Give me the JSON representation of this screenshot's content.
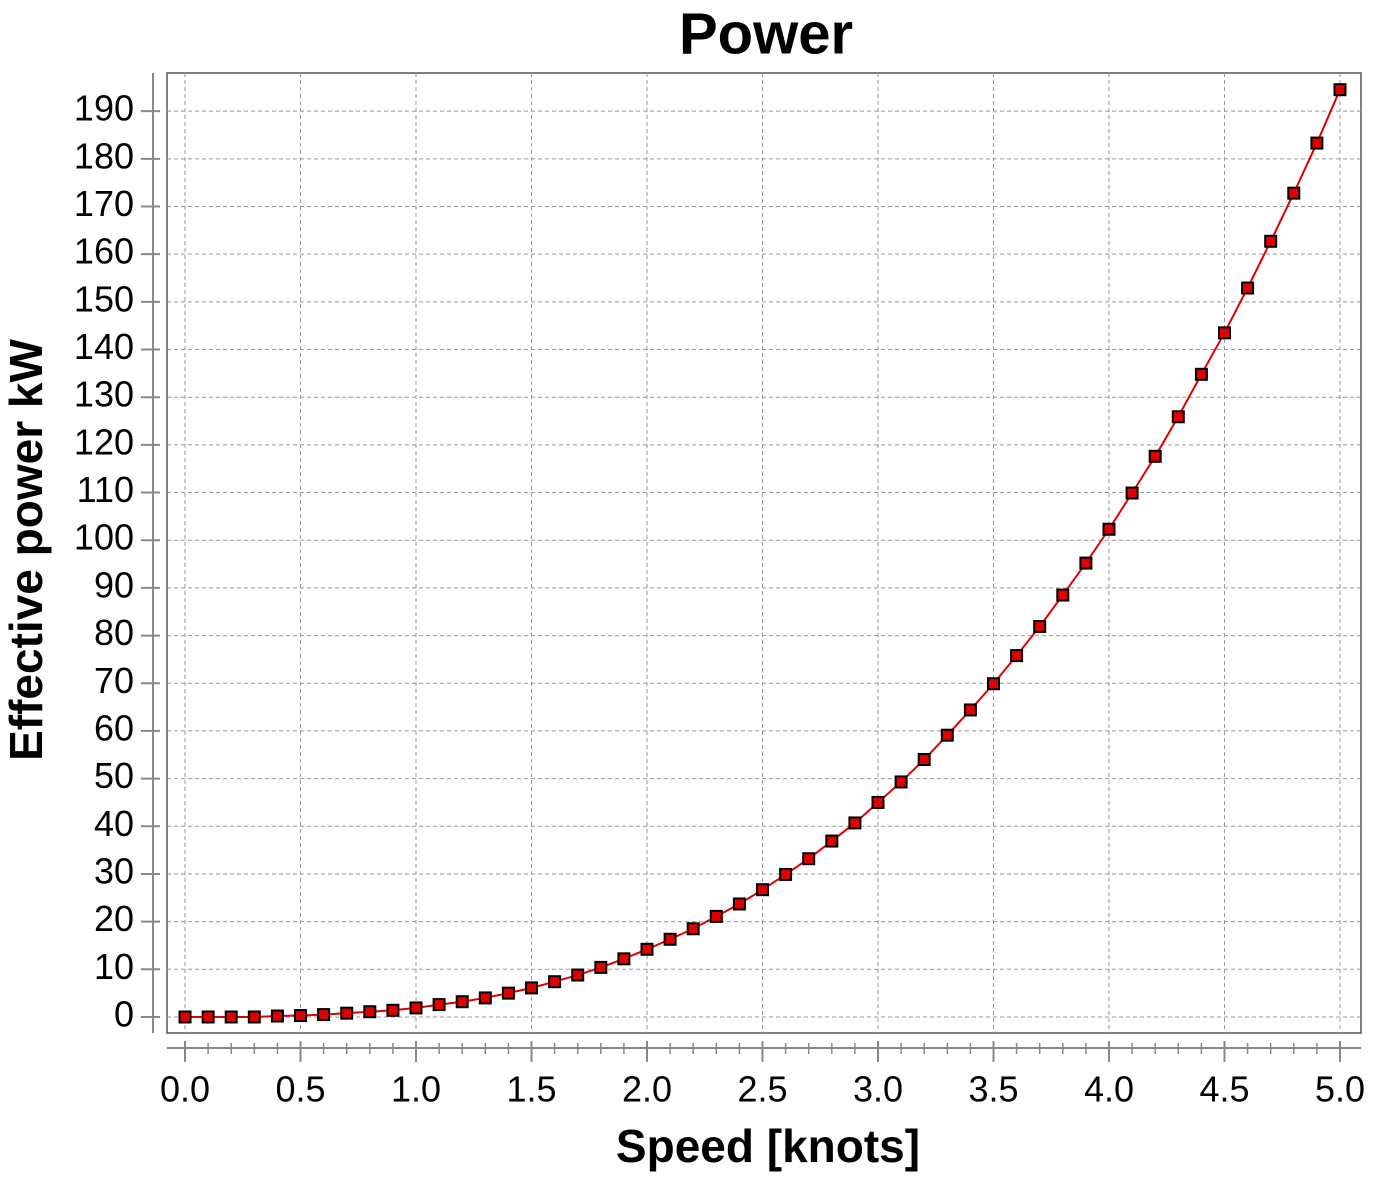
{
  "chart_data": {
    "type": "line",
    "title": "Power",
    "x_label": "Speed [knots]",
    "y_label": "Effective power kW",
    "x": [
      0,
      0.1,
      0.2,
      0.3,
      0.4,
      0.5,
      0.6,
      0.7,
      0.8,
      0.9,
      1,
      1.1,
      1.2,
      1.3,
      1.4,
      1.5,
      1.6,
      1.7,
      1.8,
      1.9,
      2,
      2.1,
      2.2,
      2.3,
      2.4,
      2.5,
      2.6,
      2.7,
      2.8,
      2.9,
      3,
      3.1,
      3.2,
      3.3,
      3.4,
      3.5,
      3.6,
      3.7,
      3.8,
      3.9,
      4,
      4.1,
      4.2,
      4.3,
      4.4,
      4.5,
      4.6,
      4.7,
      4.8,
      4.9,
      5
    ],
    "series": [
      {
        "color": "#e00000",
        "marker_color": "#e00000",
        "values": [
          0,
          0,
          0,
          0,
          0.2,
          0.3,
          0.5,
          0.8,
          1.1,
          1.4,
          1.9,
          2.6,
          3.2,
          4.0,
          5.0,
          6.1,
          7.4,
          8.8,
          10.4,
          12.2,
          14.2,
          16.3,
          18.5,
          21.1,
          23.7,
          26.7,
          29.9,
          33.2,
          36.9,
          40.7,
          45.0,
          49.3,
          54.0,
          59.1,
          64.4,
          69.9,
          75.8,
          81.9,
          88.5,
          95.2,
          102.3,
          109.9,
          117.6,
          125.9,
          134.8,
          143.5,
          152.9,
          162.7,
          172.8,
          183.3,
          194.5
        ]
      }
    ],
    "xlim": [
      -0.078,
      5.091
    ],
    "ylim": [
      -3.36,
      198
    ],
    "xticks": [
      {
        "value": 0,
        "label": "0.0"
      },
      0.5,
      {
        "value": 1,
        "label": "1.0"
      },
      1.5,
      {
        "value": 2,
        "label": "2.0"
      },
      2.5,
      {
        "value": 3,
        "label": "3.0"
      },
      3.5,
      {
        "value": 4,
        "label": "4.0"
      },
      4.5,
      {
        "value": 5,
        "label": "5.0"
      }
    ],
    "yticks": [
      0,
      10,
      20,
      30,
      40,
      50,
      60,
      70,
      80,
      90,
      100,
      110,
      120,
      130,
      140,
      150,
      160,
      170,
      180,
      190
    ],
    "grid": true
  }
}
